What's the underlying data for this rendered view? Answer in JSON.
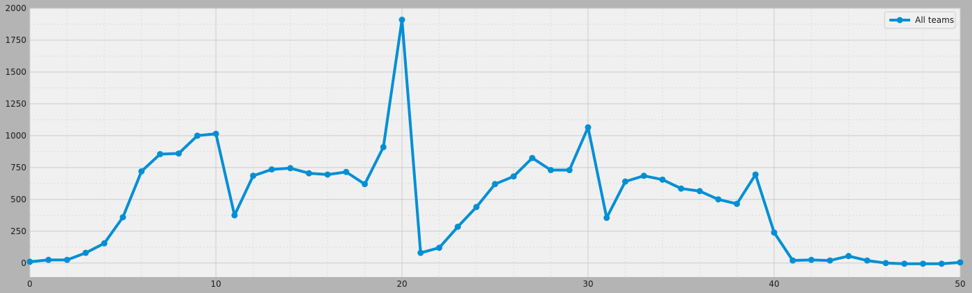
{
  "chart_data": {
    "type": "line",
    "title": "",
    "xlabel": "",
    "ylabel": "",
    "xlim": [
      0,
      50
    ],
    "ylim": [
      -110,
      2000
    ],
    "x_ticks": [
      0,
      10,
      20,
      30,
      40,
      50
    ],
    "y_ticks": [
      0,
      250,
      500,
      750,
      1000,
      1250,
      1500,
      1750,
      2000
    ],
    "grid": true,
    "legend_position": "top-right",
    "series": [
      {
        "name": "All teams",
        "color": "#008fd5",
        "x": [
          0,
          1,
          2,
          3,
          4,
          5,
          6,
          7,
          8,
          9,
          10,
          11,
          12,
          13,
          14,
          15,
          16,
          17,
          18,
          19,
          20,
          21,
          22,
          23,
          24,
          25,
          26,
          27,
          28,
          29,
          30,
          31,
          32,
          33,
          34,
          35,
          36,
          37,
          38,
          39,
          40,
          41,
          42,
          43,
          44,
          45,
          46,
          47,
          48,
          49,
          50
        ],
        "y": [
          10,
          25,
          25,
          80,
          155,
          360,
          720,
          855,
          860,
          1000,
          1015,
          375,
          685,
          735,
          745,
          705,
          695,
          715,
          620,
          910,
          1910,
          80,
          120,
          285,
          440,
          620,
          680,
          825,
          730,
          730,
          1065,
          355,
          640,
          685,
          655,
          585,
          565,
          500,
          465,
          695,
          240,
          20,
          25,
          20,
          55,
          20,
          0,
          -5,
          -5,
          -5,
          5
        ]
      }
    ]
  }
}
